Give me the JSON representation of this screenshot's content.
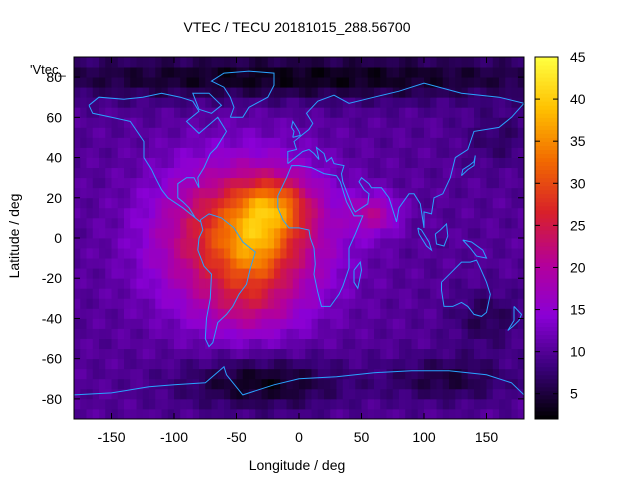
{
  "chart_data": {
    "type": "heatmap",
    "title": "VTEC / TECU 20181015_288.56700",
    "xlabel": "Longitude / deg",
    "ylabel": "Latitude / deg",
    "series_key": "'Vtec_",
    "xlim": [
      -180,
      180
    ],
    "ylim": [
      -90,
      90
    ],
    "xticks": [
      -150,
      -100,
      -50,
      0,
      50,
      100,
      150
    ],
    "yticks": [
      -80,
      -60,
      -40,
      -20,
      0,
      20,
      40,
      60,
      80
    ],
    "colorbar": {
      "min": 2,
      "max": 45,
      "ticks": [
        5,
        10,
        15,
        20,
        25,
        30,
        35,
        40,
        45
      ],
      "palette": [
        "#000000",
        "#3a007a",
        "#8a00d6",
        "#b4009a",
        "#d8202a",
        "#f26a00",
        "#ffc000",
        "#ffff40"
      ]
    },
    "vtec_field": {
      "background": 10,
      "anomalies": [
        {
          "lon": -45,
          "lat": 0,
          "slon": 45,
          "slat": 25,
          "amp": 22
        },
        {
          "lon": -20,
          "lat": 16,
          "slon": 20,
          "slat": 10,
          "amp": 12
        },
        {
          "lon": -35,
          "lat": -5,
          "slon": 15,
          "slat": 12,
          "amp": 6
        },
        {
          "lon": 60,
          "lat": 12,
          "slon": 14,
          "slat": 7,
          "amp": 9
        },
        {
          "lon": -40,
          "lat": -35,
          "slon": 25,
          "slat": 10,
          "amp": 5
        },
        {
          "lon": 0,
          "lat": 80,
          "slon": 180,
          "slat": 8,
          "amp": -7
        },
        {
          "lon": -30,
          "lat": -72,
          "slon": 45,
          "slat": 9,
          "amp": -7
        },
        {
          "lon": 120,
          "lat": -70,
          "slon": 35,
          "slat": 8,
          "amp": -5
        },
        {
          "lon": 150,
          "lat": -40,
          "slon": 20,
          "slat": 10,
          "amp": -4
        },
        {
          "lon": 160,
          "lat": 50,
          "slon": 20,
          "slat": 10,
          "amp": -3
        }
      ]
    },
    "coastlines": [
      {
        "name": "north-america",
        "points": [
          [
            -168,
            66
          ],
          [
            -160,
            70
          ],
          [
            -140,
            69
          ],
          [
            -125,
            70
          ],
          [
            -110,
            72
          ],
          [
            -95,
            70
          ],
          [
            -85,
            68
          ],
          [
            -80,
            63
          ],
          [
            -90,
            58
          ],
          [
            -80,
            52
          ],
          [
            -65,
            60
          ],
          [
            -58,
            53
          ],
          [
            -66,
            45
          ],
          [
            -71,
            42
          ],
          [
            -76,
            35
          ],
          [
            -81,
            30
          ],
          [
            -80,
            25
          ],
          [
            -84,
            30
          ],
          [
            -90,
            30
          ],
          [
            -97,
            27
          ],
          [
            -97,
            20
          ],
          [
            -93,
            18
          ],
          [
            -88,
            15
          ],
          [
            -83,
            10
          ],
          [
            -79,
            8
          ],
          [
            -85,
            11
          ],
          [
            -93,
            15
          ],
          [
            -105,
            20
          ],
          [
            -110,
            24
          ],
          [
            -115,
            30
          ],
          [
            -118,
            34
          ],
          [
            -124,
            40
          ],
          [
            -124,
            48
          ],
          [
            -135,
            58
          ],
          [
            -150,
            60
          ],
          [
            -165,
            62
          ],
          [
            -168,
            66
          ]
        ]
      },
      {
        "name": "south-america",
        "points": [
          [
            -79,
            9
          ],
          [
            -72,
            12
          ],
          [
            -62,
            10
          ],
          [
            -52,
            5
          ],
          [
            -45,
            -2
          ],
          [
            -35,
            -7
          ],
          [
            -39,
            -15
          ],
          [
            -42,
            -23
          ],
          [
            -48,
            -28
          ],
          [
            -53,
            -34
          ],
          [
            -58,
            -38
          ],
          [
            -65,
            -42
          ],
          [
            -67,
            -47
          ],
          [
            -69,
            -52
          ],
          [
            -72,
            -54
          ],
          [
            -75,
            -50
          ],
          [
            -74,
            -40
          ],
          [
            -71,
            -30
          ],
          [
            -70,
            -18
          ],
          [
            -76,
            -14
          ],
          [
            -81,
            -6
          ],
          [
            -80,
            0
          ],
          [
            -77,
            4
          ],
          [
            -79,
            9
          ]
        ]
      },
      {
        "name": "greenland",
        "points": [
          [
            -55,
            60
          ],
          [
            -45,
            60
          ],
          [
            -40,
            65
          ],
          [
            -25,
            70
          ],
          [
            -20,
            76
          ],
          [
            -20,
            82
          ],
          [
            -40,
            83
          ],
          [
            -60,
            82
          ],
          [
            -70,
            78
          ],
          [
            -60,
            75
          ],
          [
            -55,
            70
          ],
          [
            -52,
            65
          ],
          [
            -55,
            60
          ]
        ]
      },
      {
        "name": "eurasia",
        "points": [
          [
            -9,
            37
          ],
          [
            -9,
            43
          ],
          [
            -2,
            44
          ],
          [
            -4,
            48
          ],
          [
            2,
            51
          ],
          [
            8,
            54
          ],
          [
            11,
            57
          ],
          [
            6,
            62
          ],
          [
            15,
            68
          ],
          [
            28,
            71
          ],
          [
            40,
            67
          ],
          [
            60,
            70
          ],
          [
            80,
            73
          ],
          [
            100,
            77
          ],
          [
            130,
            72
          ],
          [
            160,
            70
          ],
          [
            180,
            67
          ],
          [
            170,
            60
          ],
          [
            160,
            55
          ],
          [
            140,
            53
          ],
          [
            135,
            44
          ],
          [
            125,
            40
          ],
          [
            121,
            30
          ],
          [
            115,
            22
          ],
          [
            108,
            20
          ],
          [
            106,
            12
          ],
          [
            100,
            13
          ],
          [
            100,
            5
          ],
          [
            97,
            17
          ],
          [
            92,
            22
          ],
          [
            88,
            22
          ],
          [
            80,
            15
          ],
          [
            78,
            8
          ],
          [
            72,
            20
          ],
          [
            66,
            25
          ],
          [
            58,
            25
          ],
          [
            56,
            27
          ],
          [
            50,
            30
          ],
          [
            48,
            28
          ],
          [
            52,
            24
          ],
          [
            56,
            22
          ],
          [
            55,
            17
          ],
          [
            45,
            13
          ],
          [
            43,
            15
          ],
          [
            35,
            28
          ],
          [
            34,
            32
          ],
          [
            36,
            36
          ],
          [
            28,
            37
          ],
          [
            26,
            40
          ],
          [
            22,
            38
          ],
          [
            20,
            42
          ],
          [
            14,
            45
          ],
          [
            16,
            39
          ],
          [
            12,
            42
          ],
          [
            8,
            44
          ],
          [
            3,
            43
          ],
          [
            -9,
            37
          ]
        ]
      },
      {
        "name": "africa",
        "points": [
          [
            -17,
            21
          ],
          [
            -17,
            15
          ],
          [
            -13,
            9
          ],
          [
            -8,
            5
          ],
          [
            0,
            5
          ],
          [
            8,
            4
          ],
          [
            9,
            0
          ],
          [
            12,
            -5
          ],
          [
            13,
            -13
          ],
          [
            12,
            -18
          ],
          [
            15,
            -27
          ],
          [
            18,
            -34
          ],
          [
            25,
            -34
          ],
          [
            32,
            -28
          ],
          [
            35,
            -24
          ],
          [
            40,
            -15
          ],
          [
            40,
            -5
          ],
          [
            45,
            2
          ],
          [
            51,
            11
          ],
          [
            44,
            11
          ],
          [
            38,
            18
          ],
          [
            33,
            28
          ],
          [
            30,
            31
          ],
          [
            20,
            32
          ],
          [
            10,
            35
          ],
          [
            0,
            36
          ],
          [
            -6,
            36
          ],
          [
            -10,
            30
          ],
          [
            -17,
            21
          ]
        ]
      },
      {
        "name": "madagascar",
        "points": [
          [
            44,
            -16
          ],
          [
            49,
            -12
          ],
          [
            50,
            -16
          ],
          [
            47,
            -25
          ],
          [
            44,
            -22
          ],
          [
            44,
            -16
          ]
        ]
      },
      {
        "name": "australia",
        "points": [
          [
            114,
            -22
          ],
          [
            122,
            -17
          ],
          [
            130,
            -12
          ],
          [
            137,
            -12
          ],
          [
            142,
            -11
          ],
          [
            145,
            -15
          ],
          [
            150,
            -22
          ],
          [
            153,
            -28
          ],
          [
            150,
            -37
          ],
          [
            146,
            -39
          ],
          [
            140,
            -38
          ],
          [
            135,
            -34
          ],
          [
            130,
            -32
          ],
          [
            123,
            -34
          ],
          [
            116,
            -34
          ],
          [
            114,
            -26
          ],
          [
            114,
            -22
          ]
        ]
      },
      {
        "name": "antarctica",
        "points": [
          [
            -180,
            -78
          ],
          [
            -150,
            -77
          ],
          [
            -120,
            -74
          ],
          [
            -100,
            -73
          ],
          [
            -75,
            -72
          ],
          [
            -60,
            -64
          ],
          [
            -58,
            -68
          ],
          [
            -45,
            -78
          ],
          [
            -20,
            -73
          ],
          [
            0,
            -70
          ],
          [
            30,
            -69
          ],
          [
            60,
            -67
          ],
          [
            90,
            -66
          ],
          [
            120,
            -66
          ],
          [
            150,
            -68
          ],
          [
            170,
            -72
          ],
          [
            180,
            -78
          ]
        ]
      },
      {
        "name": "british-isles",
        "points": [
          [
            -5,
            50
          ],
          [
            1,
            51
          ],
          [
            0,
            53
          ],
          [
            -3,
            56
          ],
          [
            -5,
            58
          ],
          [
            -6,
            55
          ],
          [
            -4,
            53
          ],
          [
            -5,
            50
          ]
        ]
      },
      {
        "name": "japan",
        "points": [
          [
            130,
            31
          ],
          [
            135,
            34
          ],
          [
            140,
            36
          ],
          [
            141,
            41
          ],
          [
            140,
            38
          ],
          [
            136,
            36
          ],
          [
            131,
            34
          ],
          [
            130,
            31
          ]
        ]
      },
      {
        "name": "new-zealand",
        "points": [
          [
            172,
            -34
          ],
          [
            178,
            -38
          ],
          [
            176,
            -41
          ],
          [
            171,
            -44
          ],
          [
            167,
            -46
          ],
          [
            172,
            -41
          ],
          [
            172,
            -34
          ]
        ]
      },
      {
        "name": "borneo",
        "points": [
          [
            109,
            2
          ],
          [
            113,
            4
          ],
          [
            118,
            7
          ],
          [
            119,
            1
          ],
          [
            116,
            -4
          ],
          [
            110,
            -3
          ],
          [
            109,
            2
          ]
        ]
      },
      {
        "name": "sumatra",
        "points": [
          [
            95,
            5
          ],
          [
            98,
            4
          ],
          [
            104,
            -2
          ],
          [
            106,
            -6
          ],
          [
            102,
            -4
          ],
          [
            96,
            2
          ],
          [
            95,
            5
          ]
        ]
      },
      {
        "name": "new-guinea",
        "points": [
          [
            131,
            -1
          ],
          [
            138,
            -2
          ],
          [
            147,
            -6
          ],
          [
            150,
            -10
          ],
          [
            142,
            -9
          ],
          [
            137,
            -5
          ],
          [
            131,
            -1
          ]
        ]
      },
      {
        "name": "baffin",
        "points": [
          [
            -80,
            64
          ],
          [
            -70,
            62
          ],
          [
            -62,
            66
          ],
          [
            -72,
            72
          ],
          [
            -85,
            72
          ],
          [
            -80,
            64
          ]
        ]
      }
    ]
  }
}
